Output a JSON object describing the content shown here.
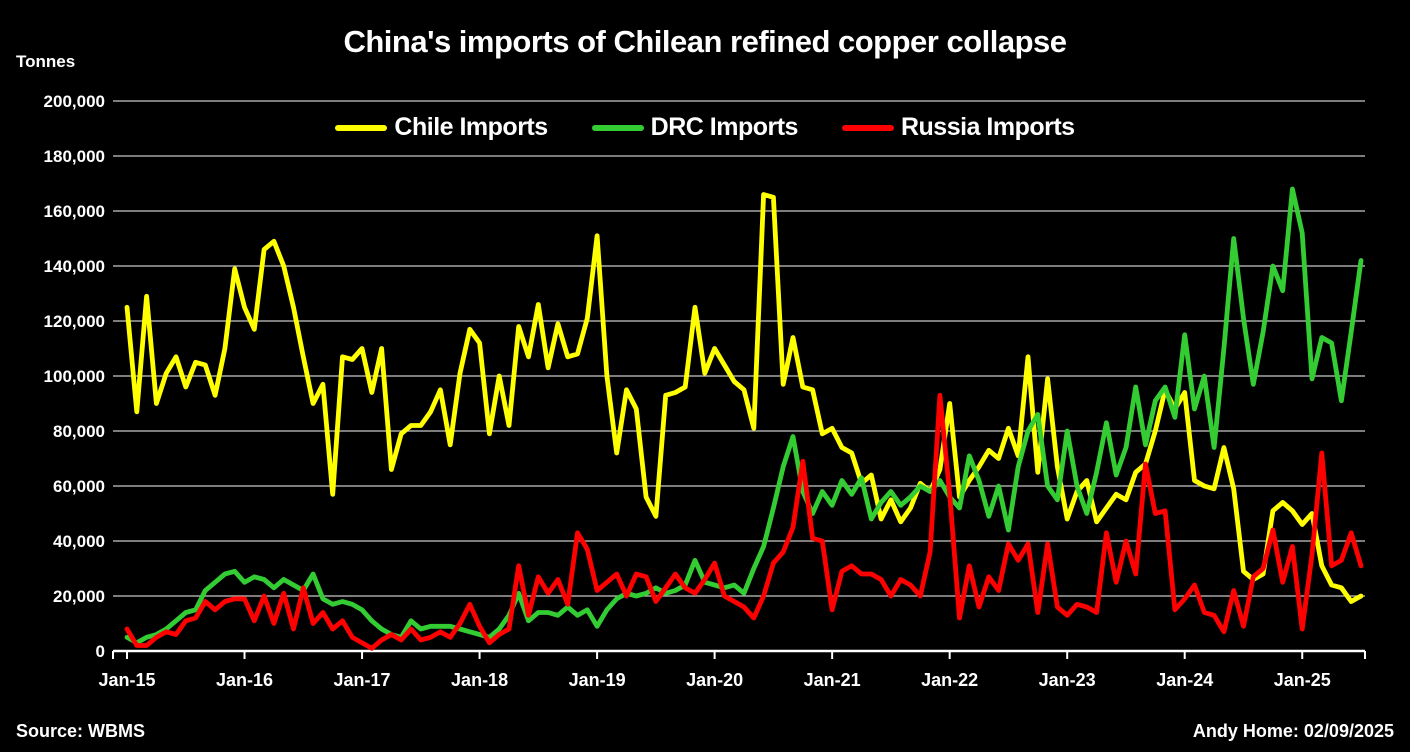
{
  "chart": {
    "title": "China's imports of Chilean refined copper collapse",
    "ylabel": "Tonnes"
  },
  "footer": {
    "source": "Source: WBMS",
    "credit": "Andy Home: 02/09/2025"
  },
  "chart_data": {
    "type": "line",
    "title": "China's imports of Chilean refined copper collapse",
    "ylabel": "Tonnes",
    "x_start": "Jan-15",
    "x_end": "Jul-25",
    "x_frequency": "monthly",
    "x_tick_labels": [
      "Jan-15",
      "Jan-16",
      "Jan-17",
      "Jan-18",
      "Jan-19",
      "Jan-20",
      "Jan-21",
      "Jan-22",
      "Jan-23",
      "Jan-24",
      "Jan-25"
    ],
    "ylim": [
      0,
      200000
    ],
    "y_tick_step": 20000,
    "grid": "horizontal",
    "legend_position": "top-center",
    "background_color": "#000000",
    "gridline_color": "#C8C8C8",
    "axis_color": "#FFFFFF",
    "text_color": "#FFFFFF",
    "series": [
      {
        "name": "Chile Imports",
        "color": "#FFFF00",
        "values": [
          125000,
          87000,
          129000,
          90000,
          101000,
          107000,
          96000,
          105000,
          104000,
          93000,
          110000,
          139000,
          125000,
          117000,
          146000,
          149000,
          140000,
          125000,
          107000,
          90000,
          97000,
          57000,
          107000,
          106000,
          110000,
          94000,
          110000,
          66000,
          79000,
          82000,
          82000,
          87000,
          95000,
          75000,
          101000,
          117000,
          112000,
          79000,
          100000,
          82000,
          118000,
          107000,
          126000,
          103000,
          119000,
          107000,
          108000,
          121000,
          151000,
          100000,
          72000,
          95000,
          88000,
          56000,
          49000,
          93000,
          94000,
          96000,
          125000,
          101000,
          110000,
          104000,
          98000,
          95000,
          81000,
          166000,
          165000,
          97000,
          114000,
          96000,
          95000,
          79000,
          81000,
          74000,
          72000,
          61000,
          64000,
          48000,
          55000,
          47000,
          52000,
          61000,
          58000,
          66000,
          90000,
          56000,
          62000,
          67000,
          73000,
          70000,
          81000,
          71000,
          107000,
          65000,
          99000,
          67000,
          48000,
          58000,
          62000,
          47000,
          52000,
          57000,
          55000,
          65000,
          68000,
          80000,
          95000,
          88000,
          94000,
          62000,
          60000,
          59000,
          74000,
          59000,
          29000,
          26000,
          28000,
          51000,
          54000,
          51000,
          46000,
          50000,
          31000,
          24000,
          23000,
          18000,
          20000
        ]
      },
      {
        "name": "DRC Imports",
        "color": "#33CC33",
        "values": [
          5000,
          3000,
          5000,
          6000,
          8000,
          11000,
          14000,
          15000,
          22000,
          25000,
          28000,
          29000,
          25000,
          27000,
          26000,
          23000,
          26000,
          24000,
          22000,
          28000,
          19000,
          17000,
          18000,
          17000,
          15000,
          11000,
          8000,
          6000,
          5000,
          11000,
          8000,
          9000,
          9000,
          9000,
          8000,
          7000,
          6000,
          5000,
          8000,
          13000,
          21000,
          11000,
          14000,
          14000,
          13000,
          16000,
          13000,
          15000,
          9000,
          15000,
          19000,
          21000,
          20000,
          21000,
          23000,
          21000,
          22000,
          24000,
          33000,
          25000,
          24000,
          23000,
          24000,
          21000,
          30000,
          38000,
          52000,
          67000,
          78000,
          58000,
          50000,
          58000,
          53000,
          62000,
          57000,
          63000,
          48000,
          54000,
          58000,
          53000,
          56000,
          60000,
          58000,
          62000,
          56000,
          52000,
          71000,
          62000,
          49000,
          60000,
          44000,
          67000,
          80000,
          86000,
          60000,
          55000,
          80000,
          60000,
          50000,
          65000,
          83000,
          64000,
          74000,
          96000,
          75000,
          91000,
          96000,
          85000,
          115000,
          88000,
          100000,
          74000,
          110000,
          150000,
          121000,
          97000,
          116000,
          140000,
          131000,
          168000,
          152000,
          99000,
          114000,
          112000,
          91000,
          116000,
          142000
        ]
      },
      {
        "name": "Russia Imports",
        "color": "#FF0000",
        "values": [
          8000,
          2000,
          2000,
          5000,
          7000,
          6000,
          11000,
          12000,
          18000,
          15000,
          18000,
          19000,
          19000,
          11000,
          20000,
          10000,
          21000,
          8000,
          23000,
          10000,
          14000,
          8000,
          11000,
          5000,
          3000,
          1000,
          4000,
          6000,
          4000,
          8000,
          4000,
          5000,
          7000,
          5000,
          10000,
          17000,
          9000,
          3000,
          6000,
          8000,
          31000,
          13000,
          27000,
          21000,
          26000,
          17000,
          43000,
          37000,
          22000,
          25000,
          28000,
          20000,
          28000,
          27000,
          18000,
          23000,
          28000,
          23000,
          21000,
          26000,
          32000,
          20000,
          18000,
          16000,
          12000,
          20000,
          32000,
          36000,
          45000,
          69000,
          41000,
          40000,
          15000,
          29000,
          31000,
          28000,
          28000,
          26000,
          20000,
          26000,
          24000,
          20000,
          36000,
          93000,
          57000,
          12000,
          31000,
          16000,
          27000,
          22000,
          39000,
          33000,
          39000,
          14000,
          39000,
          16000,
          13000,
          17000,
          16000,
          14000,
          43000,
          25000,
          40000,
          28000,
          68000,
          50000,
          51000,
          15000,
          19000,
          24000,
          14000,
          13000,
          7000,
          22000,
          9000,
          27000,
          30000,
          44000,
          25000,
          38000,
          8000,
          35000,
          72000,
          31000,
          33000,
          43000,
          31000
        ]
      }
    ]
  }
}
